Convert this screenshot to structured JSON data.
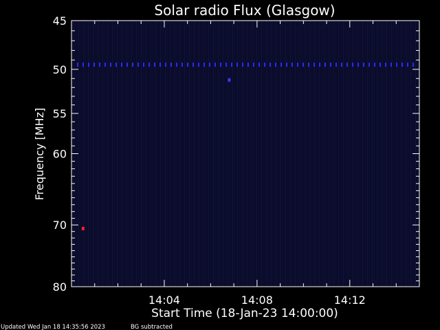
{
  "chart_data": {
    "type": "heatmap",
    "title": "Solar radio Flux (Glasgow)",
    "xlabel": "Start Time (18-Jan-23 14:00:00)",
    "ylabel": "Frequency [MHz]",
    "xlim_minutes": [
      0,
      15
    ],
    "x_ticks": [
      {
        "minute": 4,
        "label": "14:04"
      },
      {
        "minute": 8,
        "label": "14:08"
      },
      {
        "minute": 12,
        "label": "14:12"
      }
    ],
    "ylim": [
      45,
      80
    ],
    "y_ticks": [
      {
        "value": 45,
        "label": "45"
      },
      {
        "value": 50,
        "label": "50"
      },
      {
        "value": 55,
        "label": "55"
      },
      {
        "value": 60,
        "label": "60"
      },
      {
        "value": 70,
        "label": "70"
      },
      {
        "value": 80,
        "label": "80"
      }
    ],
    "background_color": "#0b0c2a",
    "features": [
      {
        "kind": "band",
        "frequency": 49.5,
        "color": "#2a2aff"
      },
      {
        "kind": "spot",
        "frequency": 51.2,
        "minute": 6.8,
        "color": "#3a3aff"
      },
      {
        "kind": "spot",
        "frequency": 70.6,
        "minute": 0.5,
        "color": "#ff2020"
      }
    ]
  },
  "footer": {
    "updated": "Updated Wed Jan 18 14:35:56 2023",
    "bg_note": "BG subtracted"
  },
  "colors": {
    "text": "#ffffff",
    "axis": "#ffffff"
  }
}
